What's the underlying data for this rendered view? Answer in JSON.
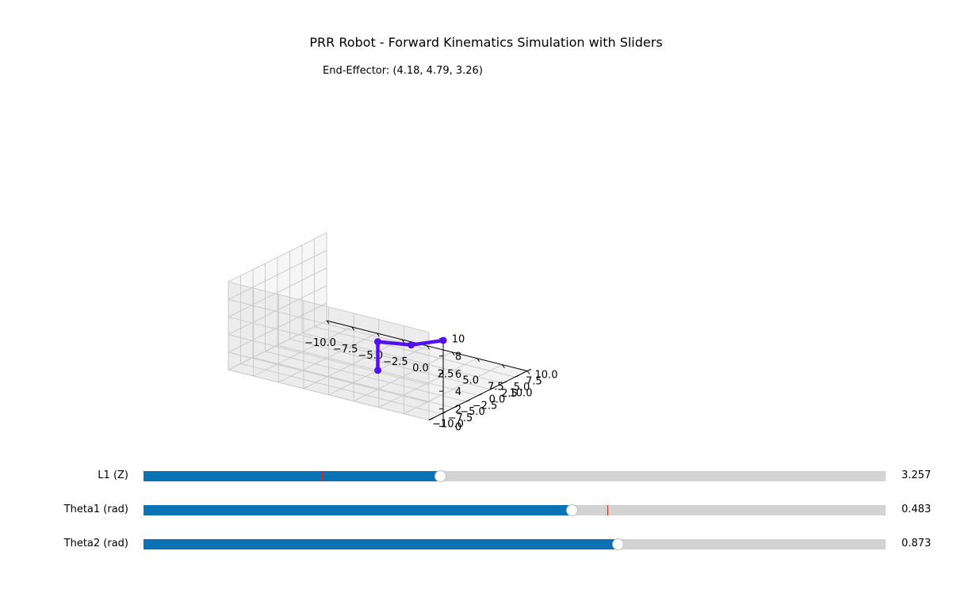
{
  "figure": {
    "title": "PRR Robot - Forward Kinematics Simulation with Sliders",
    "end_effector_text": "End-Effector: (4.18, 4.79, 3.26)"
  },
  "chart_data": {
    "type": "line3d",
    "title": "PRR Robot - Forward Kinematics Simulation with Sliders",
    "annotation": "End-Effector: (4.18, 4.79, 3.26)",
    "xlim": [
      -10,
      10
    ],
    "ylim": [
      -10,
      10
    ],
    "zlim": [
      0,
      10
    ],
    "x_ticks": [
      "−10.0",
      "−7.5",
      "−5.0",
      "−2.5",
      "0.0",
      "2.5",
      "5.0",
      "7.5",
      "10.0"
    ],
    "y_ticks": [
      "−10.0",
      "−7.5",
      "−5.0",
      "−2.5",
      "0.0",
      "2.5",
      "5.0",
      "7.5",
      "10.0"
    ],
    "z_ticks": [
      "0",
      "2",
      "4",
      "6",
      "8",
      "10"
    ],
    "grid": true,
    "series": [
      {
        "color": "#5010f0",
        "points": [
          [
            0,
            0,
            0
          ],
          [
            0,
            0,
            3.26
          ],
          [
            2.65,
            1.38,
            3.26
          ],
          [
            4.18,
            4.79,
            3.26
          ]
        ]
      }
    ]
  },
  "sliders": [
    {
      "label": "L1 (Z)",
      "value": "3.257",
      "fraction": 0.4,
      "init_fraction": 0.24
    },
    {
      "label": "Theta1 (rad)",
      "value": "0.483",
      "fraction": 0.577,
      "init_fraction": 0.625
    },
    {
      "label": "Theta2 (rad)",
      "value": "0.873",
      "fraction": 0.639,
      "init_fraction": 0.583
    }
  ],
  "colors": {
    "fill": "#0a73b6",
    "track": "#d3d3d3",
    "init_marker": "#d62728",
    "robot": "#5010f0"
  }
}
